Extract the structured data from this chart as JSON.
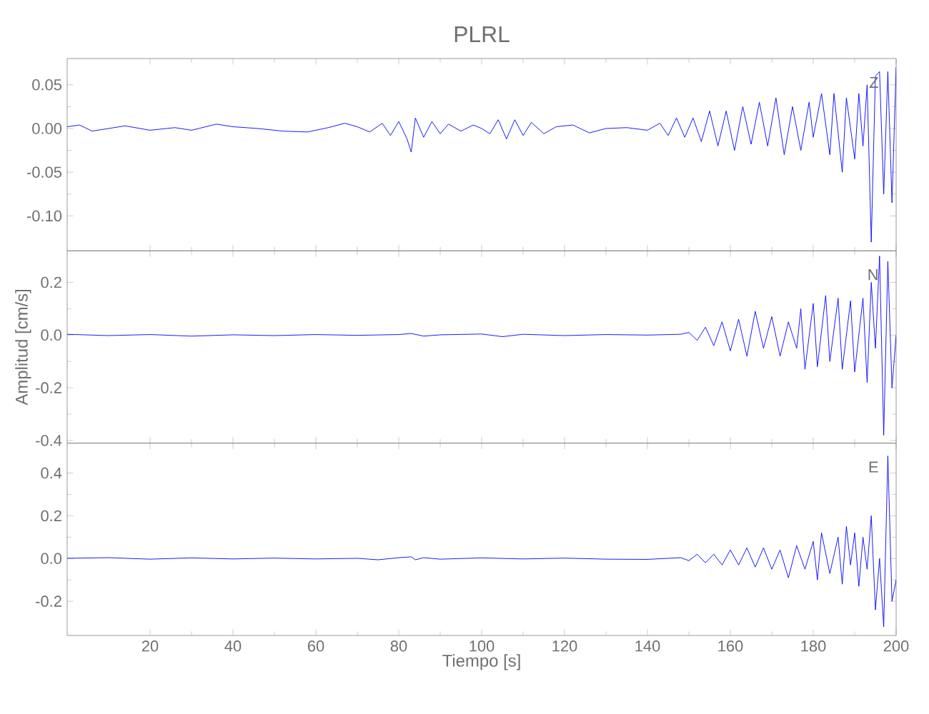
{
  "chart_data": [
    {
      "type": "line",
      "title": "PLRL",
      "annotations": [
        "Z"
      ],
      "tick_labels": "y",
      "xlim": [
        0,
        200
      ],
      "xticks": [
        20,
        40,
        60,
        80,
        100,
        120,
        140,
        160,
        180,
        200
      ],
      "ylim": [
        -0.14,
        0.08
      ],
      "yticks": [
        {
          "value": 0.05,
          "label": "0.05"
        },
        {
          "value": 0,
          "label": "0.00"
        },
        {
          "value": -0.05,
          "label": "-0.05"
        },
        {
          "value": -0.1,
          "label": "-0.10"
        }
      ],
      "x": [
        0,
        3,
        6,
        10,
        14,
        20,
        26,
        30,
        36,
        40,
        46,
        52,
        58,
        63,
        67,
        70,
        73,
        76,
        78,
        80,
        82,
        83,
        84,
        86,
        88,
        90,
        92,
        95,
        98,
        100,
        102,
        104,
        106,
        108,
        110,
        112,
        115,
        118,
        122,
        126,
        130,
        135,
        140,
        143,
        145,
        147,
        149,
        151,
        153,
        155,
        157,
        159,
        161,
        163,
        165,
        167,
        169,
        171,
        173,
        175,
        177,
        179,
        180,
        182,
        184,
        185,
        187,
        188,
        190,
        191,
        192,
        193,
        194,
        195,
        196,
        197,
        198,
        199,
        200
      ],
      "series": [
        {
          "color": "#0000ff",
          "values": [
            0.002,
            0.004,
            -0.003,
            0.0,
            0.003,
            -0.002,
            0.001,
            -0.002,
            0.005,
            0.002,
            0.0,
            -0.003,
            -0.004,
            0.001,
            0.006,
            0.002,
            -0.004,
            0.006,
            -0.008,
            0.008,
            -0.012,
            -0.027,
            0.012,
            -0.01,
            0.008,
            -0.006,
            0.005,
            -0.003,
            0.004,
            0.0,
            -0.006,
            0.01,
            -0.012,
            0.01,
            -0.008,
            0.007,
            -0.006,
            0.002,
            0.004,
            -0.005,
            0.0,
            0.001,
            -0.002,
            0.006,
            -0.008,
            0.012,
            -0.01,
            0.012,
            -0.015,
            0.02,
            -0.02,
            0.02,
            -0.025,
            0.025,
            -0.018,
            0.03,
            -0.02,
            0.035,
            -0.03,
            0.025,
            -0.025,
            0.03,
            -0.01,
            0.04,
            -0.03,
            0.04,
            -0.05,
            0.035,
            -0.035,
            0.04,
            -0.02,
            0.05,
            -0.13,
            0.06,
            0.065,
            -0.075,
            0.065,
            -0.085,
            0.07
          ]
        }
      ]
    },
    {
      "type": "line",
      "ylabel": "Amplitud [cm/s]",
      "annotations": [
        "N"
      ],
      "tick_labels": "y",
      "xlim": [
        0,
        200
      ],
      "xticks": [
        20,
        40,
        60,
        80,
        100,
        120,
        140,
        160,
        180,
        200
      ],
      "ylim": [
        -0.41,
        0.32
      ],
      "yticks": [
        {
          "value": 0.2,
          "label": "0.2"
        },
        {
          "value": 0,
          "label": "0.0"
        },
        {
          "value": -0.2,
          "label": "-0.2"
        },
        {
          "value": -0.4,
          "label": "-0.4"
        }
      ],
      "x": [
        0,
        10,
        20,
        30,
        40,
        50,
        60,
        70,
        80,
        83,
        86,
        90,
        100,
        105,
        110,
        120,
        130,
        140,
        148,
        150,
        152,
        154,
        156,
        158,
        160,
        162,
        164,
        166,
        168,
        170,
        172,
        174,
        176,
        177,
        178,
        180,
        181,
        183,
        184,
        186,
        187,
        189,
        190,
        192,
        193,
        194,
        195,
        196,
        197,
        198,
        199,
        200
      ],
      "series": [
        {
          "color": "#0000ff",
          "values": [
            0.003,
            -0.002,
            0.002,
            -0.004,
            0.001,
            -0.002,
            0.002,
            -0.001,
            0.002,
            0.006,
            -0.004,
            0.001,
            0.004,
            -0.006,
            0.003,
            -0.002,
            0.002,
            0.0,
            0.003,
            0.01,
            -0.02,
            0.03,
            -0.04,
            0.05,
            -0.06,
            0.06,
            -0.08,
            0.09,
            -0.05,
            0.07,
            -0.08,
            0.05,
            -0.05,
            0.1,
            -0.13,
            0.12,
            -0.12,
            0.15,
            -0.1,
            0.14,
            -0.13,
            0.13,
            -0.14,
            0.14,
            -0.18,
            0.2,
            -0.05,
            0.3,
            -0.38,
            0.28,
            -0.2,
            0.0
          ]
        }
      ]
    },
    {
      "type": "line",
      "xlabel": "Tiempo [s]",
      "annotations": [
        "E"
      ],
      "xlim": [
        0,
        200
      ],
      "xticks": [
        20,
        40,
        60,
        80,
        100,
        120,
        140,
        160,
        180,
        200
      ],
      "ylim": [
        -0.36,
        0.54
      ],
      "yticks": [
        {
          "value": 0.4,
          "label": "0.4"
        },
        {
          "value": 0.2,
          "label": "0.2"
        },
        {
          "value": 0,
          "label": "0.0"
        },
        {
          "value": -0.2,
          "label": "-0.2"
        }
      ],
      "x": [
        0,
        10,
        20,
        30,
        40,
        50,
        60,
        70,
        75,
        80,
        83,
        84,
        86,
        90,
        100,
        110,
        120,
        130,
        140,
        148,
        150,
        152,
        154,
        156,
        158,
        160,
        162,
        164,
        166,
        168,
        170,
        172,
        174,
        176,
        178,
        180,
        181,
        182,
        184,
        186,
        187,
        188,
        189,
        190,
        191,
        192,
        193,
        194,
        195,
        196,
        197,
        198,
        199,
        200
      ],
      "series": [
        {
          "color": "#0000ff",
          "values": [
            0.001,
            0.004,
            -0.003,
            0.003,
            -0.002,
            0.002,
            -0.002,
            0.001,
            -0.006,
            0.004,
            0.008,
            -0.006,
            0.004,
            -0.003,
            0.003,
            -0.002,
            0.002,
            -0.003,
            -0.004,
            0.004,
            -0.01,
            0.02,
            -0.02,
            0.02,
            -0.03,
            0.04,
            -0.03,
            0.05,
            -0.04,
            0.05,
            -0.05,
            0.04,
            -0.09,
            0.06,
            -0.05,
            0.08,
            -0.1,
            0.12,
            -0.07,
            0.1,
            -0.12,
            0.15,
            -0.03,
            0.12,
            -0.13,
            0.1,
            -0.05,
            0.2,
            -0.24,
            0.0,
            -0.32,
            0.48,
            -0.2,
            -0.1
          ]
        }
      ]
    }
  ]
}
